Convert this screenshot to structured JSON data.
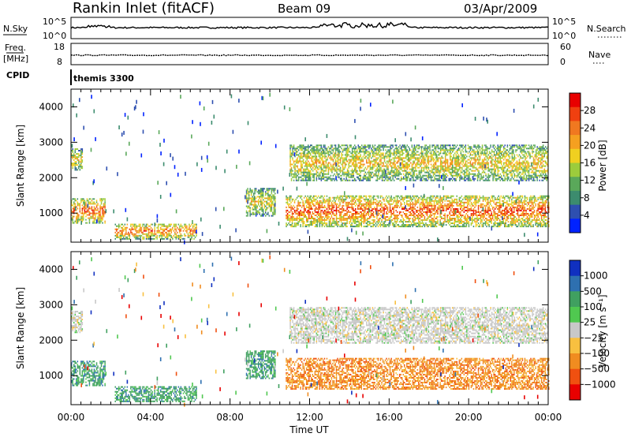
{
  "header": {
    "station": "Rankin Inlet (fitACF)",
    "beam": "Beam 09",
    "date": "03/Apr/2009"
  },
  "noise_panel": {
    "left_label": "N.Sky",
    "right_label": "N.Search",
    "ytick_top": "10^5",
    "ytick_bottom": "10^0",
    "right_ytick_top": "10^5",
    "right_ytick_bottom": "10^0"
  },
  "freq_panel": {
    "left_label_1": "Freq.",
    "left_label_2": "[MHz]",
    "right_label": "Nave",
    "yticks_left": [
      "18",
      "8"
    ],
    "yticks_right": [
      "60",
      "0"
    ]
  },
  "cpid": {
    "label": "CPID",
    "value": "themis 3300"
  },
  "colors": {
    "power_scale": [
      "#0022ff",
      "#2e4fb0",
      "#3c8c6e",
      "#5aa85a",
      "#9ccc3c",
      "#f0d020",
      "#f5a020",
      "#f07820",
      "#f04010",
      "#e80000"
    ],
    "velocity_scale": [
      "#e80000",
      "#f05010",
      "#f08c20",
      "#f8c040",
      "#c8c8c8",
      "#50c850",
      "#40a060",
      "#2e70b0",
      "#1030c0"
    ]
  },
  "chart_data": [
    {
      "type": "heatmap",
      "name": "power",
      "x_range_hours": [
        0,
        24
      ],
      "ylim": [
        180,
        4500
      ],
      "ylabel": "Slant Range [km]",
      "yticks": [
        1000,
        2000,
        3000,
        4000
      ],
      "colorbar_label": "Power [dB]",
      "colorbar_ticks": [
        "28",
        "24",
        "20",
        "16",
        "12",
        "8",
        "4"
      ],
      "colorbar_range": [
        0,
        30
      ],
      "echo_regions": [
        {
          "t0": 0.0,
          "t1": 1.7,
          "r0": 700,
          "r1": 1400,
          "level": 0.75
        },
        {
          "t0": 0.0,
          "t1": 0.6,
          "r0": 2200,
          "r1": 2800,
          "level": 0.55
        },
        {
          "t0": 2.2,
          "t1": 6.3,
          "r0": 250,
          "r1": 700,
          "level": 0.7
        },
        {
          "t0": 8.8,
          "t1": 10.3,
          "r0": 900,
          "r1": 1700,
          "level": 0.5
        },
        {
          "t0": 10.8,
          "t1": 24.0,
          "r0": 600,
          "r1": 1500,
          "level": 0.75
        },
        {
          "t0": 11.0,
          "t1": 24.0,
          "r0": 1900,
          "r1": 2900,
          "level": 0.55
        }
      ]
    },
    {
      "type": "heatmap",
      "name": "velocity",
      "x_range_hours": [
        0,
        24
      ],
      "ylim": [
        180,
        4500
      ],
      "ylabel": "Slant Range [km]",
      "yticks": [
        1000,
        2000,
        3000,
        4000
      ],
      "colorbar_label": "Velocity [m s⁻¹]",
      "colorbar_ticks": [
        "1000",
        "500",
        "100",
        "25",
        "−25",
        "−100",
        "−500",
        "−1000"
      ],
      "xticks": [
        "00:00",
        "04:00",
        "08:00",
        "12:00",
        "16:00",
        "20:00",
        "00:00"
      ],
      "xlabel": "Time UT"
    }
  ]
}
